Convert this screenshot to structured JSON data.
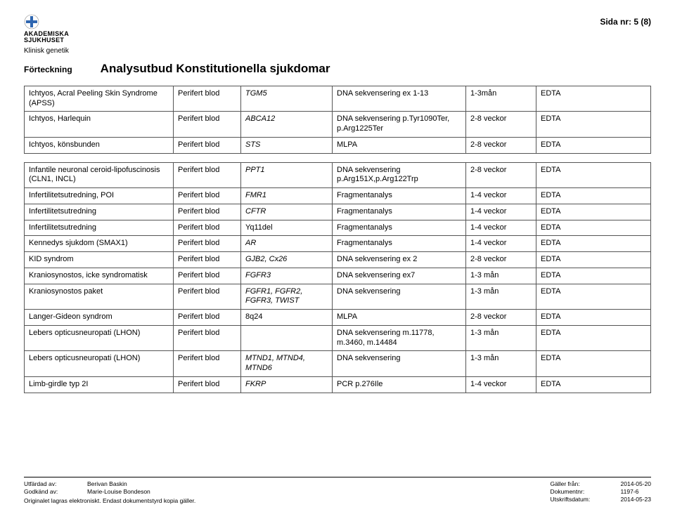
{
  "header": {
    "org_line1": "AKADEMISKA",
    "org_line2": "SJUKHUSET",
    "dept": "Klinisk genetik",
    "page_num": "Sida nr: 5 (8)",
    "doc_type": "Förteckning",
    "doc_title": "Analysutbud Konstitutionella sjukdomar",
    "colors": {
      "cross": "#2f66b0",
      "border": "#000000"
    }
  },
  "tableA": {
    "rows": [
      {
        "c1": "Ichtyos, Acral Peeling Skin Syndrome (APSS)",
        "c2": "Perifert blod",
        "c3": "TGM5",
        "c3_italic": true,
        "c4": "DNA sekvensering ex 1-13",
        "c5": "1-3mån",
        "c6": "EDTA"
      },
      {
        "c1": "Ichtyos, Harlequin",
        "c2": "Perifert blod",
        "c3": "ABCA12",
        "c3_italic": true,
        "c4": "DNA sekvensering p.Tyr1090Ter, p.Arg1225Ter",
        "c5": "2-8 veckor",
        "c6": "EDTA"
      },
      {
        "c1": "Ichtyos, könsbunden",
        "c2": "Perifert blod",
        "c3": "STS",
        "c3_italic": true,
        "c4": "MLPA",
        "c5": "2-8 veckor",
        "c6": "EDTA"
      }
    ]
  },
  "tableB": {
    "rows": [
      {
        "c1": "Infantile neuronal ceroid-lipofuscinosis (CLN1, INCL)",
        "c2": "Perifert blod",
        "c3": "PPT1",
        "c3_italic": true,
        "c4": "DNA sekvensering p.Arg151X,p.Arg122Trp",
        "c5": "2-8 veckor",
        "c6": "EDTA"
      },
      {
        "c1": "Infertilitetsutredning, POI",
        "c2": "Perifert blod",
        "c3": "FMR1",
        "c3_italic": true,
        "c4": "Fragmentanalys",
        "c5": "1-4 veckor",
        "c6": "EDTA"
      },
      {
        "c1": "Infertilitetsutredning",
        "c2": "Perifert blod",
        "c3": "CFTR",
        "c3_italic": true,
        "c4": "Fragmentanalys",
        "c5": "1-4 veckor",
        "c6": "EDTA"
      },
      {
        "c1": "Infertilitetsutredning",
        "c2": "Perifert blod",
        "c3": "Yq11del",
        "c3_italic": false,
        "c4": "Fragmentanalys",
        "c5": "1-4 veckor",
        "c6": "EDTA"
      },
      {
        "c1": "Kennedys sjukdom (SMAX1)",
        "c2": "Perifert blod",
        "c3": "AR",
        "c3_italic": true,
        "c4": "Fragmentanalys",
        "c5": "1-4 veckor",
        "c6": "EDTA"
      },
      {
        "c1": "KID syndrom",
        "c2": "Perifert blod",
        "c3": "GJB2, Cx26",
        "c3_italic": true,
        "c4": "DNA sekvensering  ex 2",
        "c5": "2-8 veckor",
        "c6": "EDTA"
      },
      {
        "c1": "Kraniosynostos, icke syndromatisk",
        "c2": "Perifert blod",
        "c3": "FGFR3",
        "c3_italic": true,
        "c4": "DNA sekvensering ex7",
        "c5": "1-3 mån",
        "c6": "EDTA"
      },
      {
        "c1": "Kraniosynostos paket",
        "c2": "Perifert blod",
        "c3": "FGFR1, FGFR2, FGFR3, TWIST",
        "c3_italic": true,
        "c4": "DNA sekvensering",
        "c5": "1-3 mån",
        "c6": "EDTA"
      },
      {
        "c1": "Langer-Gideon syndrom",
        "c2": "Perifert blod",
        "c3": "8q24",
        "c3_italic": false,
        "c4": "MLPA",
        "c5": "2-8 veckor",
        "c6": "EDTA"
      },
      {
        "c1": "Lebers opticusneuropati (LHON)",
        "c2": "Perifert blod",
        "c3": "",
        "c3_italic": false,
        "c4": "DNA sekvensering m.11778, m.3460, m.14484",
        "c5": "1-3 mån",
        "c6": "EDTA"
      },
      {
        "c1": "Lebers opticusneuropati (LHON)",
        "c2": "Perifert blod",
        "c3": "MTND1, MTND4, MTND6",
        "c3_italic": true,
        "c4": "DNA sekvensering",
        "c5": "1-3 mån",
        "c6": "EDTA"
      },
      {
        "c1": "Limb-girdle typ 2I",
        "c2": "Perifert blod",
        "c3": "FKRP",
        "c3_italic": true,
        "c4": "PCR p.276Ile",
        "c5": "1-4 veckor",
        "c6": "EDTA"
      }
    ]
  },
  "footer": {
    "left": [
      {
        "label": "Utfärdad av:",
        "value": "Berivan Baskin"
      },
      {
        "label": "Godkänd av:",
        "value": "Marie-Louise Bondeson"
      }
    ],
    "note": "Originalet lagras elektroniskt. Endast dokumentstyrd kopia gäller.",
    "right": [
      {
        "label": "Gäller från:",
        "value": "2014-05-20"
      },
      {
        "label": "Dokumentnr:",
        "value": "1197-6"
      },
      {
        "label": "Utskriftsdatum:",
        "value": "2014-05-23"
      }
    ]
  }
}
